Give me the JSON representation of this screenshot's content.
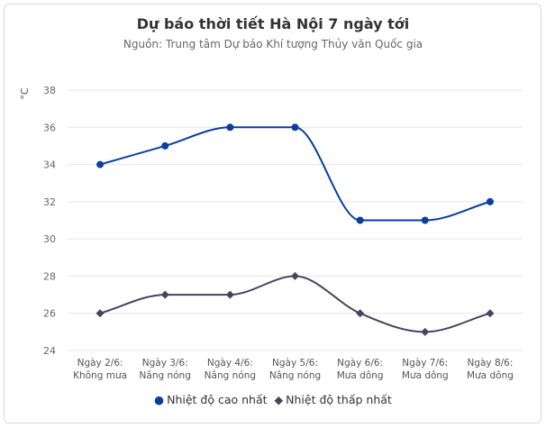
{
  "title": "Dự báo thời tiết Hà Nội 7 ngày tới",
  "subtitle": "Nguồn: Trung tâm Dự báo Khí tượng Thủy văn Quốc gia",
  "colors": {
    "high": "#0b3e9e",
    "low": "#4a4260",
    "grid": "#e6e6e6"
  },
  "chart_data": {
    "type": "line",
    "ylabel": "°C",
    "ylim": [
      24,
      38
    ],
    "yticks": [
      24,
      26,
      28,
      30,
      32,
      34,
      36,
      38
    ],
    "grid": true,
    "legend_position": "bottom",
    "categories": [
      [
        "Ngày 2/6:",
        "Không mưa"
      ],
      [
        "Ngày 3/6:",
        "Nắng nóng"
      ],
      [
        "Ngày 4/6:",
        "Nắng nóng"
      ],
      [
        "Ngày 5/6:",
        "Nắng nóng"
      ],
      [
        "Ngày 6/6:",
        "Mưa dông"
      ],
      [
        "Ngày 7/6:",
        "Mưa dông"
      ],
      [
        "Ngày 8/6:",
        "Mưa dông"
      ]
    ],
    "series": [
      {
        "name": "Nhiệt độ cao nhất",
        "marker": "circle",
        "values": [
          34,
          35,
          36,
          36,
          31,
          31,
          32
        ]
      },
      {
        "name": "Nhiệt độ thấp nhất",
        "marker": "diamond",
        "values": [
          26,
          27,
          27,
          28,
          26,
          25,
          26
        ]
      }
    ]
  }
}
